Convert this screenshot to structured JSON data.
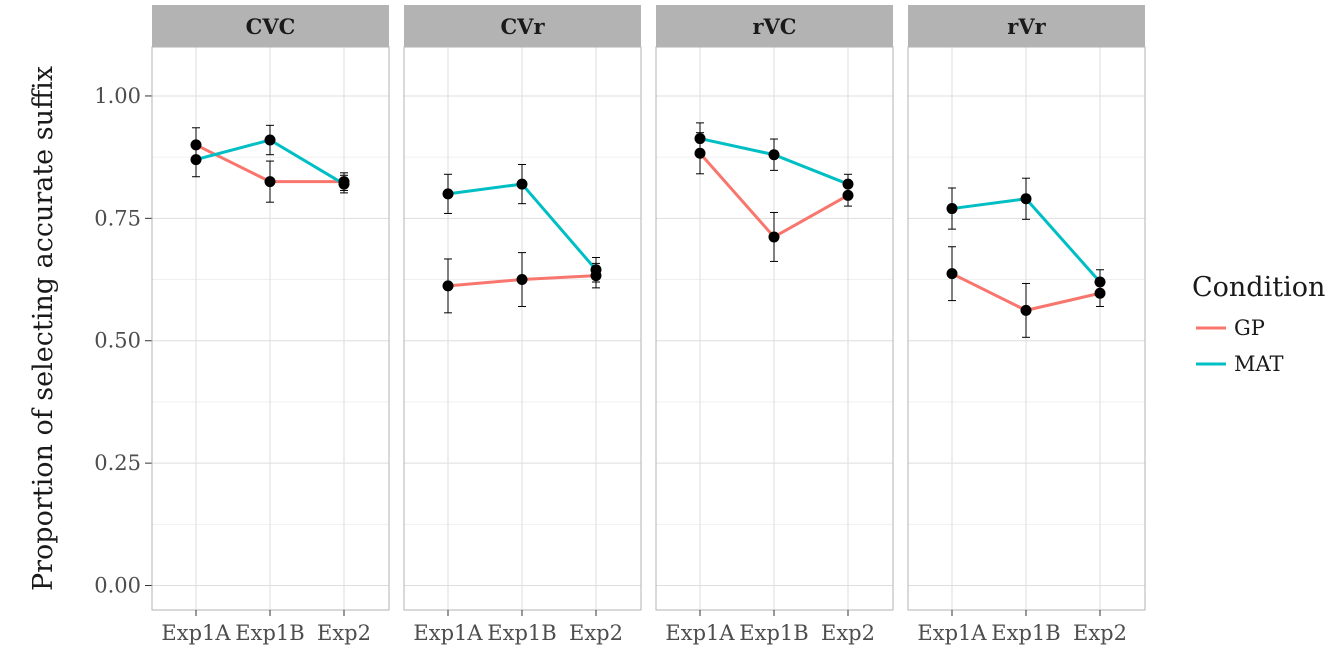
{
  "chart_data": {
    "type": "line",
    "facet_variable": "syllable type",
    "ylabel": "Proportion of selecting accurate suffix",
    "xlabel": "",
    "ylim": [
      -0.05,
      1.1
    ],
    "yticks": [
      0.0,
      0.25,
      0.5,
      0.75,
      1.0
    ],
    "ytick_labels": [
      "0.00",
      "0.25",
      "0.50",
      "0.75",
      "1.00"
    ],
    "categories": [
      "Exp1A",
      "Exp1B",
      "Exp2"
    ],
    "grid": true,
    "legend": {
      "title": "Condition",
      "placement": "right",
      "entries": [
        {
          "name": "GP",
          "color": "#f8766d"
        },
        {
          "name": "MAT",
          "color": "#00bfc4"
        }
      ]
    },
    "point_color": "#000000",
    "strip_color": "#b3b3b3",
    "panels": [
      {
        "label": "CVC",
        "series": [
          {
            "name": "GP",
            "values": [
              0.9,
              0.825,
              0.825
            ],
            "err": [
              0.035,
              0.042,
              0.018
            ]
          },
          {
            "name": "MAT",
            "values": [
              0.87,
              0.91,
              0.82
            ],
            "err": [
              0.035,
              0.03,
              0.018
            ]
          }
        ]
      },
      {
        "label": "CVr",
        "series": [
          {
            "name": "GP",
            "values": [
              0.612,
              0.625,
              0.633
            ],
            "err": [
              0.055,
              0.055,
              0.025
            ]
          },
          {
            "name": "MAT",
            "values": [
              0.8,
              0.82,
              0.645
            ],
            "err": [
              0.04,
              0.04,
              0.025
            ]
          }
        ]
      },
      {
        "label": "rVC",
        "series": [
          {
            "name": "GP",
            "values": [
              0.883,
              0.712,
              0.797
            ],
            "err": [
              0.042,
              0.05,
              0.022
            ]
          },
          {
            "name": "MAT",
            "values": [
              0.913,
              0.88,
              0.82
            ],
            "err": [
              0.032,
              0.032,
              0.02
            ]
          }
        ]
      },
      {
        "label": "rVr",
        "series": [
          {
            "name": "GP",
            "values": [
              0.637,
              0.562,
              0.597
            ],
            "err": [
              0.055,
              0.055,
              0.027
            ]
          },
          {
            "name": "MAT",
            "values": [
              0.77,
              0.79,
              0.62
            ],
            "err": [
              0.042,
              0.042,
              0.025
            ]
          }
        ]
      }
    ]
  }
}
